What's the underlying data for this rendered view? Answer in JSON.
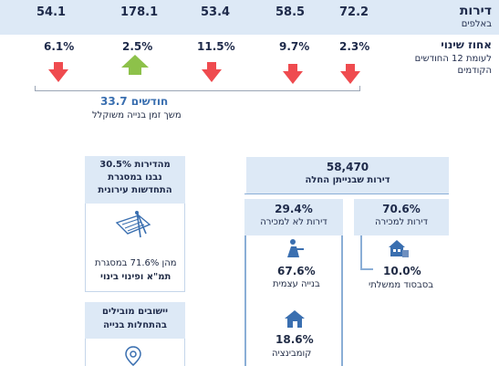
{
  "top": {
    "title": "דירות",
    "subtitle": "באלפים",
    "values": [
      "54.1",
      "178.1",
      "53.4",
      "58.5",
      "72.2"
    ]
  },
  "change": {
    "title": "אחוז שינוי",
    "subtitle1": "לעומת 12 החודשים",
    "subtitle2": "הקודמים",
    "percents": [
      "6.1%",
      "2.5%",
      "11.5%",
      "9.7%",
      "2.3%"
    ]
  },
  "duration": {
    "value": "33.7 חודשים",
    "label": "משך זמן בנייה משוקלל"
  },
  "tree": {
    "total_value": "58,470",
    "total_label": "דירות שבנייתן החלה",
    "sale_value": "70.6%",
    "sale_label": "דירות למכירה",
    "subsidy_value": "10.0%",
    "subsidy_label": "בסבסוד ממשלתי",
    "notsale_value": "29.4%",
    "notsale_label": "דירות לא למכירה",
    "self_value": "67.6%",
    "self_label": "בנייה עצמית",
    "combo_value": "18.6%",
    "combo_label": "קומבינציה"
  },
  "urban": {
    "line1": "30.5% מהדירות",
    "line2": "נבנו במסגרת",
    "line3": "התחדשות עירונית",
    "note1": "מהן 71.6% במסגרת",
    "note2": "תמ\"א ופינוי בינוי"
  },
  "settlements": {
    "line1": "יישובים מובילים",
    "line2": "בהתחלות בנייה"
  },
  "colors": {
    "red": "#ef4b4f",
    "green": "#8dc14a",
    "light_blue": "#dde9f6",
    "navy": "#1e2a4a",
    "link_blue": "#3a6fb0"
  }
}
